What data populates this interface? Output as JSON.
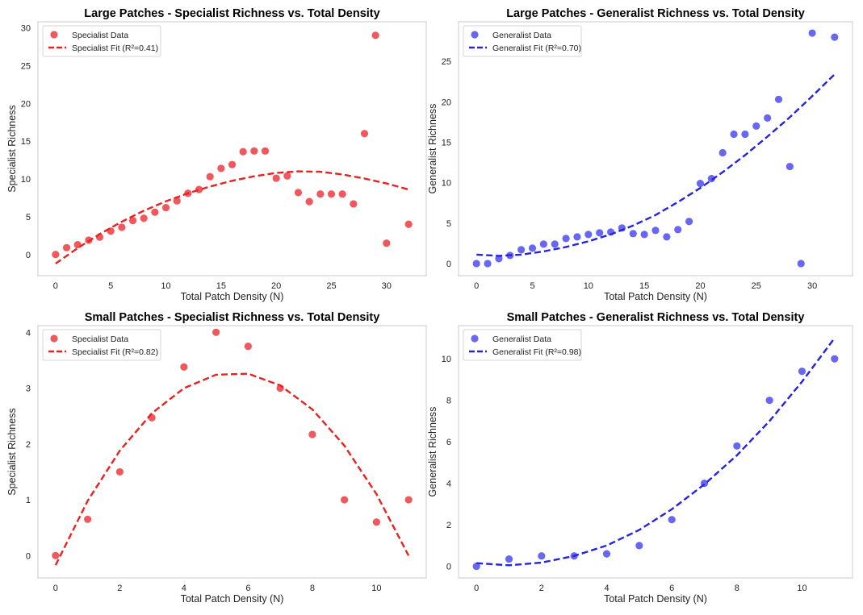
{
  "chart_data": [
    {
      "type": "scatter",
      "title": "Large Patches - Specialist Richness vs. Total Density",
      "xlabel": "Total Patch Density (N)",
      "ylabel": "Specialist Richness",
      "xlim": [
        -1.6,
        33.6
      ],
      "ylim": [
        -2.8,
        30.8
      ],
      "xticks": [
        0,
        5,
        10,
        15,
        20,
        25,
        30
      ],
      "yticks": [
        0,
        5,
        10,
        15,
        20,
        25,
        30
      ],
      "grid": false,
      "legend": "top-left",
      "color": "#f04a4f",
      "fit_color": "#e8231f",
      "series": [
        {
          "name": "Specialist Data",
          "kind": "points",
          "x": [
            0,
            1,
            2,
            3,
            4,
            5,
            6,
            7,
            8,
            9,
            10,
            11,
            12,
            13,
            14,
            15,
            16,
            17,
            18,
            19,
            20,
            21,
            22,
            23,
            24,
            25,
            26,
            27,
            28,
            29,
            30,
            32
          ],
          "y": [
            0,
            0.9,
            1.3,
            1.9,
            2.3,
            3.1,
            3.6,
            4.5,
            4.8,
            5.6,
            6.2,
            7.1,
            8.1,
            8.6,
            10.3,
            11.4,
            11.9,
            13.6,
            13.7,
            13.7,
            10.1,
            10.4,
            8.2,
            7,
            8,
            8,
            8,
            6.7,
            16,
            29,
            1.5,
            4
          ]
        },
        {
          "name": "Specialist Fit (R²=0.41)",
          "kind": "line",
          "x": [
            0,
            2,
            4,
            6,
            8,
            10,
            12,
            14,
            16,
            18,
            20,
            22,
            24,
            26,
            28,
            30,
            32
          ],
          "y": [
            -1.2,
            0.85,
            2.7,
            4.35,
            5.8,
            7.05,
            8.1,
            9.0,
            9.75,
            10.35,
            10.8,
            11.0,
            10.95,
            10.6,
            10.05,
            9.4,
            8.6
          ]
        }
      ]
    },
    {
      "type": "scatter",
      "title": "Large Patches - Generalist Richness vs. Total Density",
      "xlabel": "Total Patch Density (N)",
      "ylabel": "Generalist Richness",
      "xlim": [
        -1.6,
        33.6
      ],
      "ylim": [
        -1.5,
        29.9
      ],
      "xticks": [
        0,
        5,
        10,
        15,
        20,
        25,
        30
      ],
      "yticks": [
        0,
        5,
        10,
        15,
        20,
        25
      ],
      "grid": false,
      "legend": "top-left",
      "color": "#5a5af0",
      "fit_color": "#2424e0",
      "series": [
        {
          "name": "Generalist Data",
          "kind": "points",
          "x": [
            0,
            1,
            2,
            3,
            4,
            5,
            6,
            7,
            8,
            9,
            10,
            11,
            12,
            13,
            14,
            15,
            16,
            17,
            18,
            19,
            20,
            21,
            22,
            23,
            24,
            25,
            26,
            27,
            28,
            29,
            30,
            32
          ],
          "y": [
            0,
            0,
            0.6,
            1,
            1.7,
            1.9,
            2.4,
            2.4,
            3.1,
            3.3,
            3.6,
            3.8,
            3.9,
            4.4,
            3.7,
            3.6,
            4.1,
            3.3,
            4.2,
            5.2,
            9.9,
            10.5,
            13.7,
            16,
            16,
            17,
            18,
            20.3,
            12,
            0,
            28.5,
            28
          ]
        },
        {
          "name": "Generalist Fit (R²=0.70)",
          "kind": "line",
          "x": [
            0,
            2,
            4,
            6,
            8,
            10,
            12,
            14,
            16,
            18,
            20,
            22,
            24,
            26,
            28,
            30,
            32
          ],
          "y": [
            1.1,
            0.95,
            1.1,
            1.5,
            2.05,
            2.75,
            3.6,
            4.7,
            6.0,
            7.6,
            9.35,
            11.3,
            13.4,
            15.7,
            18.1,
            20.7,
            23.4
          ]
        }
      ]
    },
    {
      "type": "scatter",
      "title": "Small Patches - Specialist Richness vs. Total Density",
      "xlabel": "Total Patch Density (N)",
      "ylabel": "Specialist Richness",
      "xlim": [
        -0.55,
        11.55
      ],
      "ylim": [
        -0.4,
        4.12
      ],
      "xticks": [
        0,
        2,
        4,
        6,
        8,
        10
      ],
      "yticks": [
        0,
        1,
        2,
        3,
        4
      ],
      "grid": false,
      "legend": "top-left",
      "color": "#f04a4f",
      "fit_color": "#e8231f",
      "series": [
        {
          "name": "Specialist Data",
          "kind": "points",
          "x": [
            0,
            1,
            2,
            3,
            4,
            5,
            6,
            7,
            8,
            9,
            10,
            11
          ],
          "y": [
            0,
            0.65,
            1.5,
            2.47,
            3.38,
            4,
            3.75,
            3,
            2.17,
            1,
            0.6,
            1
          ]
        },
        {
          "name": "Specialist Fit (R²=0.82)",
          "kind": "line",
          "x": [
            0,
            1,
            2,
            3,
            4,
            5,
            6,
            7,
            8,
            9,
            10,
            11
          ],
          "y": [
            -0.17,
            0.98,
            1.88,
            2.55,
            3.0,
            3.24,
            3.26,
            3.05,
            2.62,
            1.97,
            1.1,
            0.0
          ]
        }
      ]
    },
    {
      "type": "scatter",
      "title": "Small Patches - Generalist Richness vs. Total Density",
      "xlabel": "Total Patch Density (N)",
      "ylabel": "Generalist Richness",
      "xlim": [
        -0.55,
        11.55
      ],
      "ylim": [
        -0.56,
        11.6
      ],
      "xticks": [
        0,
        2,
        4,
        6,
        8,
        10
      ],
      "yticks": [
        0,
        2,
        4,
        6,
        8,
        10
      ],
      "grid": false,
      "legend": "top-left",
      "color": "#5a5af0",
      "fit_color": "#2424e0",
      "series": [
        {
          "name": "Generalist Data",
          "kind": "points",
          "x": [
            0,
            1,
            2,
            3,
            4,
            5,
            6,
            7,
            8,
            9,
            10,
            11
          ],
          "y": [
            0,
            0.35,
            0.5,
            0.5,
            0.6,
            1,
            2.25,
            4,
            5.8,
            8,
            9.4,
            10
          ]
        },
        {
          "name": "Generalist Fit (R²=0.98)",
          "kind": "line",
          "x": [
            0,
            1,
            2,
            3,
            4,
            5,
            6,
            7,
            8,
            9,
            10,
            11
          ],
          "y": [
            0.15,
            0.05,
            0.18,
            0.5,
            1.0,
            1.75,
            2.75,
            3.95,
            5.35,
            7.0,
            8.9,
            11.0
          ]
        }
      ]
    }
  ]
}
